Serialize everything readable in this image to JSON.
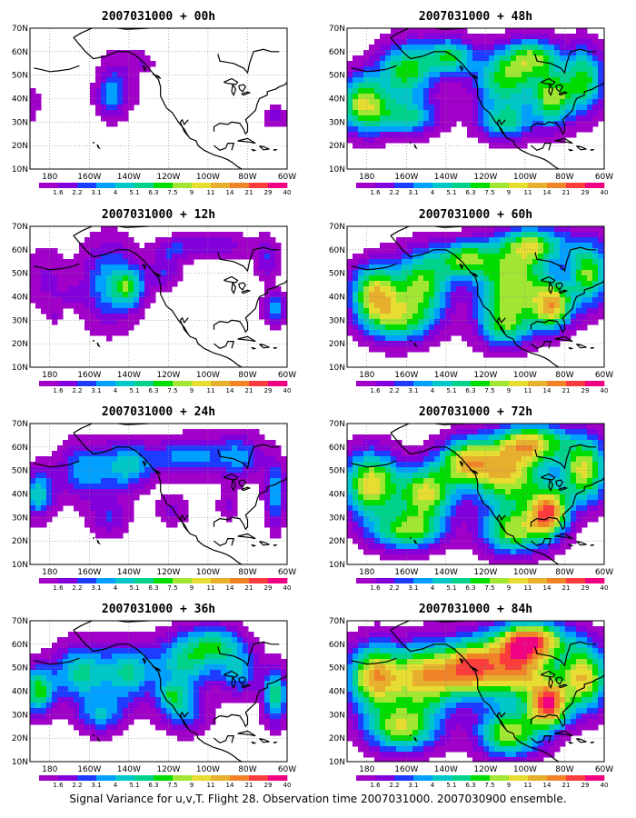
{
  "colorbar": {
    "labels": [
      "1.6",
      "2.2",
      "3.1",
      "4",
      "5.1",
      "6.3",
      "7.5",
      "9",
      "11",
      "14",
      "21",
      "29",
      "40"
    ],
    "colors": [
      "#a000c8",
      "#8200dc",
      "#1e3cff",
      "#00a0ff",
      "#00c8c8",
      "#00d28c",
      "#00dc00",
      "#a0e632",
      "#e6dc32",
      "#e6af2d",
      "#f08228",
      "#fa3c3c",
      "#f00082"
    ]
  },
  "axes": {
    "lat_labels": [
      "70N",
      "60N",
      "50N",
      "40N",
      "30N",
      "20N",
      "10N"
    ],
    "lon_labels": [
      "180",
      "160W",
      "140W",
      "120W",
      "100W",
      "80W",
      "60W"
    ]
  },
  "panels": [
    {
      "title": "2007031000 + 00h",
      "lead_hours": 0,
      "level": 0
    },
    {
      "title": "2007031000 + 48h",
      "lead_hours": 48,
      "level": 4
    },
    {
      "title": "2007031000 + 12h",
      "lead_hours": 12,
      "level": 1
    },
    {
      "title": "2007031000 + 60h",
      "lead_hours": 60,
      "level": 5
    },
    {
      "title": "2007031000 + 24h",
      "lead_hours": 24,
      "level": 2
    },
    {
      "title": "2007031000 + 72h",
      "lead_hours": 72,
      "level": 6
    },
    {
      "title": "2007031000 + 36h",
      "lead_hours": 36,
      "level": 3
    },
    {
      "title": "2007031000 + 84h",
      "lead_hours": 84,
      "level": 7
    }
  ],
  "caption": "Signal Variance for u,v,T. Flight 28. Observation time 2007031000. 2007030900 ensemble."
}
